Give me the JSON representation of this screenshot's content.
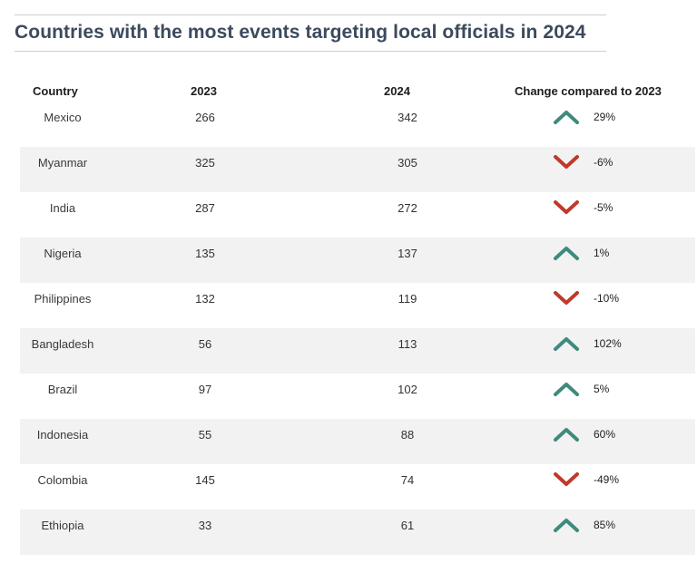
{
  "chart_data": {
    "type": "table",
    "title": "Countries with the most events targeting local officials in 2024",
    "columns": [
      "Country",
      "2023",
      "2024",
      "Change compared to 2023"
    ],
    "rows": [
      {
        "country": "Mexico",
        "y2023": "266",
        "y2024": "342",
        "change": "29%",
        "direction": "up"
      },
      {
        "country": "Myanmar",
        "y2023": "325",
        "y2024": "305",
        "change": "-6%",
        "direction": "down"
      },
      {
        "country": "India",
        "y2023": "287",
        "y2024": "272",
        "change": "-5%",
        "direction": "down"
      },
      {
        "country": "Nigeria",
        "y2023": "135",
        "y2024": "137",
        "change": "1%",
        "direction": "up"
      },
      {
        "country": "Philippines",
        "y2023": "132",
        "y2024": "119",
        "change": "-10%",
        "direction": "down"
      },
      {
        "country": "Bangladesh",
        "y2023": "56",
        "y2024": "113",
        "change": "102%",
        "direction": "up"
      },
      {
        "country": "Brazil",
        "y2023": "97",
        "y2024": "102",
        "change": "5%",
        "direction": "up"
      },
      {
        "country": "Indonesia",
        "y2023": "55",
        "y2024": "88",
        "change": "60%",
        "direction": "up"
      },
      {
        "country": "Colombia",
        "y2023": "145",
        "y2024": "74",
        "change": "-49%",
        "direction": "down"
      },
      {
        "country": "Ethiopia",
        "y2023": "33",
        "y2024": "61",
        "change": "85%",
        "direction": "up"
      }
    ]
  },
  "colors": {
    "up": "#3f8a7e",
    "down": "#c0392b",
    "stripe": "#f2f2f2",
    "title": "#3c4a5e"
  },
  "icons": {
    "up": "chevron-up-icon",
    "down": "chevron-down-icon"
  }
}
